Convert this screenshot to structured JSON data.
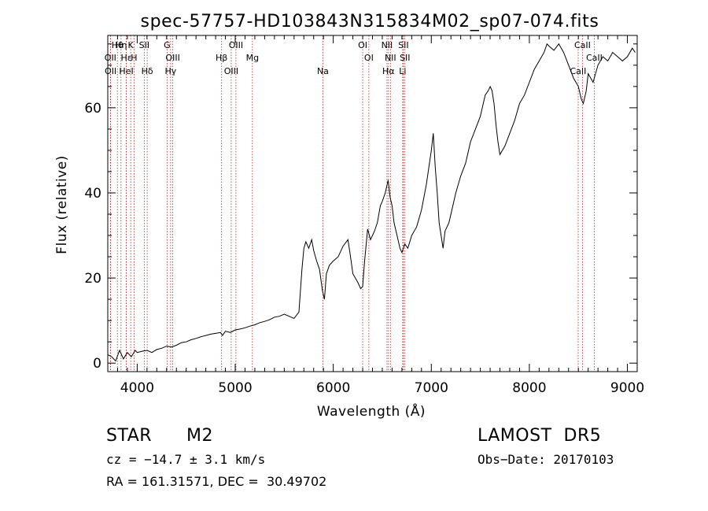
{
  "chart_data": {
    "type": "line",
    "title": "spec-57757-HD103843N315834M02_sp07-074.fits",
    "xlabel": "Wavelength (Å)",
    "ylabel": "Flux (relative)",
    "xlim": [
      3700,
      9100
    ],
    "ylim": [
      -2,
      77
    ],
    "xticks": [
      4000,
      5000,
      6000,
      7000,
      8000,
      9000
    ],
    "yticks": [
      0,
      20,
      40,
      60
    ],
    "grid": false,
    "series": [
      {
        "x": [
          3700,
          3740,
          3780,
          3820,
          3860,
          3900,
          3940,
          3980,
          4000,
          4050,
          4100,
          4150,
          4200,
          4250,
          4300,
          4350,
          4400,
          4450,
          4500,
          4550,
          4600,
          4650,
          4700,
          4750,
          4800,
          4850,
          4870,
          4900,
          4950,
          5000,
          5050,
          5100,
          5150,
          5200,
          5250,
          5300,
          5350,
          5400,
          5450,
          5500,
          5550,
          5600,
          5650,
          5680,
          5700,
          5720,
          5750,
          5780,
          5800,
          5830,
          5860,
          5890,
          5910,
          5930,
          5960,
          6000,
          6050,
          6100,
          6150,
          6170,
          6200,
          6250,
          6280,
          6300,
          6320,
          6350,
          6380,
          6420,
          6450,
          6480,
          6500,
          6530,
          6560,
          6580,
          6600,
          6620,
          6650,
          6680,
          6700,
          6730,
          6760,
          6800,
          6850,
          6900,
          6950,
          7000,
          7020,
          7040,
          7060,
          7080,
          7100,
          7120,
          7140,
          7160,
          7180,
          7200,
          7250,
          7300,
          7350,
          7400,
          7450,
          7500,
          7550,
          7580,
          7600,
          7620,
          7640,
          7660,
          7680,
          7700,
          7750,
          7800,
          7850,
          7900,
          7950,
          8000,
          8050,
          8100,
          8150,
          8180,
          8200,
          8250,
          8300,
          8350,
          8400,
          8450,
          8500,
          8530,
          8550,
          8580,
          8600,
          8650,
          8700,
          8750,
          8800,
          8850,
          8900,
          8950,
          9000,
          9050,
          9080
        ],
        "y": [
          2.0,
          1.5,
          0.5,
          3.0,
          1.0,
          2.5,
          1.5,
          3.0,
          2.5,
          2.8,
          3.0,
          2.5,
          3.2,
          3.5,
          4.0,
          3.8,
          4.2,
          4.8,
          5.0,
          5.5,
          5.8,
          6.2,
          6.5,
          6.8,
          7.0,
          7.2,
          6.5,
          7.5,
          7.2,
          7.8,
          8.0,
          8.3,
          8.7,
          9.0,
          9.5,
          9.8,
          10.2,
          10.8,
          11.0,
          11.5,
          11.0,
          10.5,
          12.0,
          22.0,
          27.0,
          28.5,
          27.0,
          29.0,
          26.5,
          24.0,
          22.0,
          17.0,
          15.0,
          21.0,
          23.0,
          24.0,
          25.0,
          27.5,
          29.0,
          26.0,
          21.0,
          19.0,
          17.5,
          18.0,
          24.0,
          31.5,
          29.0,
          31.0,
          33.0,
          37.0,
          38.0,
          40.0,
          43.0,
          39.0,
          37.0,
          33.0,
          30.0,
          27.0,
          26.0,
          28.0,
          27.0,
          30.0,
          32.0,
          36.0,
          42.0,
          50.0,
          54.0,
          46.0,
          40.0,
          33.0,
          30.0,
          27.0,
          31.0,
          32.0,
          33.0,
          35.0,
          40.0,
          44.0,
          47.0,
          52.0,
          55.0,
          58.0,
          63.0,
          64.0,
          65.0,
          64.0,
          61.0,
          56.0,
          52.0,
          49.0,
          51.0,
          54.0,
          57.0,
          61.0,
          63.0,
          66.0,
          69.0,
          71.0,
          73.0,
          75.0,
          74.5,
          73.5,
          75.0,
          73.0,
          70.0,
          67.0,
          65.0,
          62.0,
          61.0,
          64.0,
          68.0,
          66.0,
          70.0,
          72.0,
          71.0,
          73.0,
          72.0,
          71.0,
          72.0,
          74.0,
          73.0
        ]
      }
    ],
    "lines": [
      {
        "label": "Hθ",
        "x": 3798
      },
      {
        "label": "OII",
        "x": 3727
      },
      {
        "label": "OII",
        "x": 3729
      },
      {
        "label": "Hη",
        "x": 3835
      },
      {
        "label": "Hε",
        "x": 3889
      },
      {
        "label": "HeI",
        "x": 3889
      },
      {
        "label": "K",
        "x": 3934
      },
      {
        "label": "H",
        "x": 3968
      },
      {
        "label": "Hδ",
        "x": 4102
      },
      {
        "label": "SII",
        "x": 4072
      },
      {
        "label": "OIII",
        "x": 4363
      },
      {
        "label": "Hγ",
        "x": 4341
      },
      {
        "label": "G",
        "x": 4305
      },
      {
        "label": "Hβ",
        "x": 4861
      },
      {
        "label": "OIII",
        "x": 4959
      },
      {
        "label": "OIII",
        "x": 5007
      },
      {
        "label": "Mg",
        "x": 5175
      },
      {
        "label": "Na",
        "x": 5894
      },
      {
        "label": "OI",
        "x": 6300
      },
      {
        "label": "OI",
        "x": 6363
      },
      {
        "label": "Hα",
        "x": 6563
      },
      {
        "label": "NII",
        "x": 6548
      },
      {
        "label": "NII",
        "x": 6583
      },
      {
        "label": "Li",
        "x": 6708
      },
      {
        "label": "SII",
        "x": 6716
      },
      {
        "label": "SII",
        "x": 6731
      },
      {
        "label": "CaII",
        "x": 8498
      },
      {
        "label": "CaII",
        "x": 8542
      },
      {
        "label": "CaII",
        "x": 8662
      }
    ]
  },
  "info": {
    "object_class": "STAR",
    "subclass": "M2",
    "redshift": "cz = −14.7 ± 3.1 km/s",
    "coords": "RA = 161.31571, DEC =  30.49702",
    "survey": "LAMOST  DR5",
    "obs_date": "Obs−Date: 20170103"
  }
}
